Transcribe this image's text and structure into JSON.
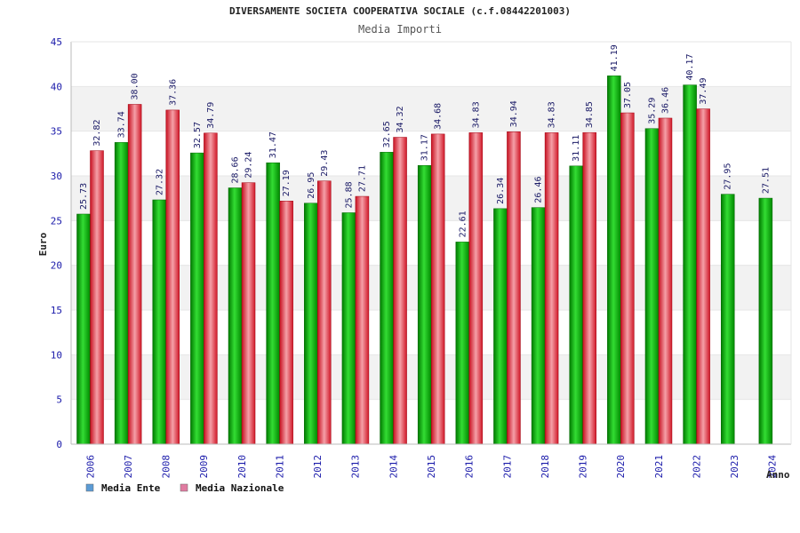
{
  "chart_data": {
    "type": "bar",
    "title": "DIVERSAMENTE SOCIETA COOPERATIVA SOCIALE (c.f.08442201003)",
    "subtitle": "Media Importi",
    "xlabel": "Anno",
    "ylabel": "Euro",
    "ylim": [
      0,
      45
    ],
    "yticks": [
      0,
      5,
      10,
      15,
      20,
      25,
      30,
      35,
      40,
      45
    ],
    "categories": [
      "2006",
      "2007",
      "2008",
      "2009",
      "2010",
      "2011",
      "2012",
      "2013",
      "2014",
      "2015",
      "2016",
      "2017",
      "2018",
      "2019",
      "2020",
      "2021",
      "2022",
      "2023",
      "2024"
    ],
    "series": [
      {
        "name": "Media Ente",
        "color": "#00b000",
        "legend_color": "#5b9bd5",
        "values": [
          25.73,
          33.74,
          27.32,
          32.57,
          28.66,
          31.47,
          26.95,
          25.88,
          32.65,
          31.17,
          22.61,
          26.34,
          26.46,
          31.11,
          41.19,
          35.29,
          40.17,
          27.95,
          27.51
        ],
        "labels": [
          "25.73",
          "33.74",
          "27.32",
          "32.57",
          "28.66",
          "31.47",
          "26.95",
          "25.88",
          "32.65",
          "31.17",
          "22.61",
          "26.34",
          "26.46",
          "31.11",
          "41.19",
          "35.29",
          "40.17",
          "27.95",
          "27.51"
        ]
      },
      {
        "name": "Media Nazionale",
        "color": "#e8202a",
        "legend_color": "#e07ba0",
        "values": [
          32.82,
          38.0,
          37.36,
          34.79,
          29.24,
          27.19,
          29.43,
          27.71,
          34.32,
          34.68,
          34.83,
          34.94,
          34.83,
          34.85,
          37.05,
          36.46,
          37.49,
          null,
          null
        ],
        "labels": [
          "32.82",
          "38.00",
          "37.36",
          "34.79",
          "29.24",
          "27.19",
          "29.43",
          "27.71",
          "34.32",
          "34.68",
          "34.83",
          "34.94",
          "34.83",
          "34.85",
          "37.05",
          "36.46",
          "37.49",
          null,
          null
        ]
      }
    ],
    "legend_position": "bottom-left",
    "grid": true
  },
  "colors": {
    "axis_text": "#1a1aaa",
    "band": "#f2f2f2",
    "grid": "#e6e6e6",
    "axis": "#bbbbbb"
  }
}
